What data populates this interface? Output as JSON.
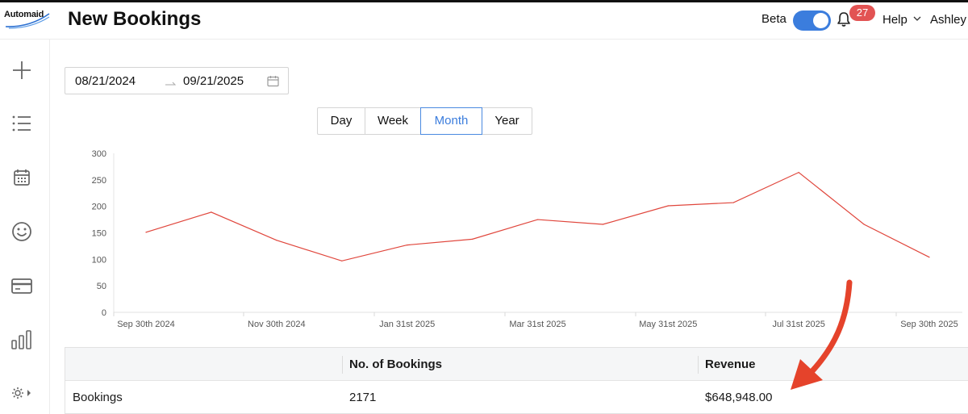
{
  "app": {
    "logo_text": "Automaid",
    "page_title": "New Bookings"
  },
  "header": {
    "beta_label": "Beta",
    "beta_enabled": true,
    "notification_count": "27",
    "help_label": "Help",
    "user_name": "Ashley"
  },
  "sidebar": {
    "items": [
      {
        "icon": "plus-icon"
      },
      {
        "icon": "list-icon"
      },
      {
        "icon": "calendar-icon"
      },
      {
        "icon": "smiley-icon"
      },
      {
        "icon": "credit-card-icon"
      },
      {
        "icon": "bar-chart-icon"
      },
      {
        "icon": "gear-icon"
      }
    ]
  },
  "filters": {
    "start_date": "08/21/2024",
    "end_date": "09/21/2025",
    "granularity": [
      {
        "label": "Day",
        "active": false
      },
      {
        "label": "Week",
        "active": false
      },
      {
        "label": "Month",
        "active": true
      },
      {
        "label": "Year",
        "active": false
      }
    ]
  },
  "chart_data": {
    "type": "line",
    "x": [
      "Sep 30th 2024",
      "Oct 31st 2024",
      "Nov 30th 2024",
      "Dec 31st 2024",
      "Jan 31st 2025",
      "Feb 28th 2025",
      "Mar 31st 2025",
      "Apr 30th 2025",
      "May 31st 2025",
      "Jun 30th 2025",
      "Jul 31st 2025",
      "Aug 31st 2025",
      "Sep 30th 2025"
    ],
    "x_tick_labels": [
      "Sep 30th 2024",
      "Nov 30th 2024",
      "Jan 31st 2025",
      "Mar 31st 2025",
      "May 31st 2025",
      "Jul 31st 2025",
      "Sep 30th 2025"
    ],
    "series": [
      {
        "values": [
          151,
          189,
          136,
          97,
          127,
          138,
          175,
          166,
          201,
          207,
          264,
          166,
          104
        ]
      }
    ],
    "ylim": [
      0,
      300
    ],
    "yticks": [
      0,
      50,
      100,
      150,
      200,
      250,
      300
    ],
    "line_color": "#e0463c",
    "grid": false
  },
  "table": {
    "headers": [
      "",
      "No. of Bookings",
      "Revenue"
    ],
    "rows": [
      [
        "Bookings",
        "2171",
        "$648,948.00"
      ]
    ]
  },
  "colors": {
    "accent": "#3b7ddd",
    "badge": "#e25353",
    "annotation_arrow": "#e5432b"
  }
}
